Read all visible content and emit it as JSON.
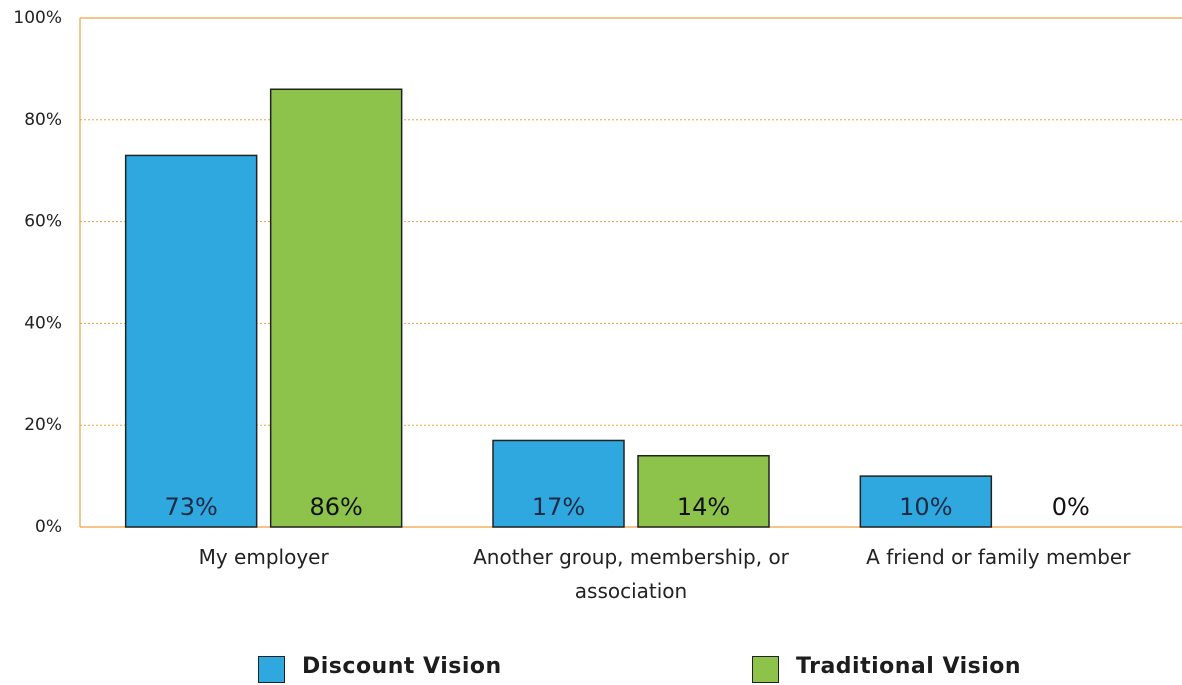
{
  "chart_data": {
    "type": "bar",
    "categories": [
      "My employer",
      "Another group, membership, or association",
      "A friend or family member"
    ],
    "series": [
      {
        "name": "Discount Vision",
        "color": "#2ea8df",
        "values": [
          73,
          17,
          10
        ],
        "value_labels": [
          "73%",
          "17%",
          "10%"
        ]
      },
      {
        "name": "Traditional Vision",
        "color": "#8dc34a",
        "values": [
          86,
          14,
          0
        ],
        "value_labels": [
          "86%",
          "14%",
          "0%"
        ]
      }
    ],
    "ylim": [
      0,
      100
    ],
    "yticks": [
      {
        "value": 0,
        "label": "0%"
      },
      {
        "value": 20,
        "label": "20%"
      },
      {
        "value": 40,
        "label": "40%"
      },
      {
        "value": 60,
        "label": "60%"
      },
      {
        "value": 80,
        "label": "80%"
      },
      {
        "value": 100,
        "label": "100%"
      }
    ],
    "grid": true
  }
}
